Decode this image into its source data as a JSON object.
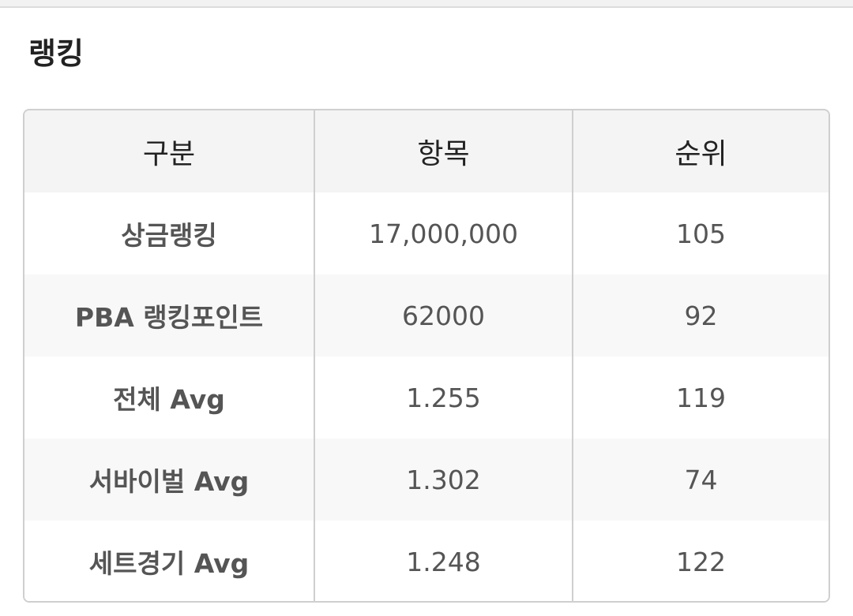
{
  "section": {
    "title": "랭킹"
  },
  "table": {
    "headers": [
      "구분",
      "항목",
      "순위"
    ],
    "rows": [
      {
        "label": "상금랭킹",
        "value": "17,000,000",
        "rank": "105"
      },
      {
        "label": "PBA 랭킹포인트",
        "value": "62000",
        "rank": "92"
      },
      {
        "label": "전체 Avg",
        "value": "1.255",
        "rank": "119"
      },
      {
        "label": "서바이벌 Avg",
        "value": "1.302",
        "rank": "74"
      },
      {
        "label": "세트경기 Avg",
        "value": "1.248",
        "rank": "122"
      }
    ]
  }
}
